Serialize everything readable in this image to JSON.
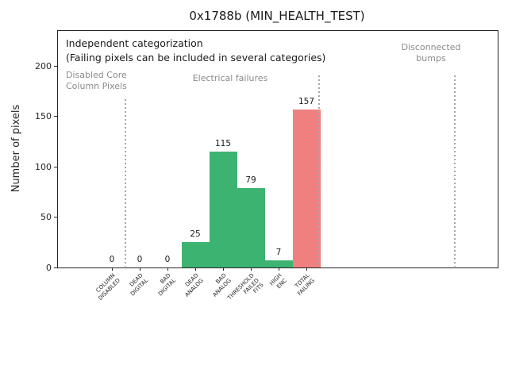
{
  "window": {
    "title": "0x1788b (MIN_HEALTH_TEST)"
  },
  "chart_data": {
    "type": "bar",
    "title": "0x1788b (MIN_HEALTH_TEST)",
    "xlabel": "",
    "ylabel": "Number of pixels",
    "categories": [
      "COLUMN\nDISABLED",
      "DEAD\nDIGITAL",
      "BAD\nDIGITAL",
      "DEAD\nANALOG",
      "BAD\nANALOG",
      "THRESHOLD\nFAILED\nFITS",
      "HIGH\nENC",
      "TOTAL\nFAILING"
    ],
    "values": [
      0,
      0,
      0,
      25,
      115,
      79,
      7,
      157
    ],
    "bar_value_labels": [
      "0",
      "0",
      "0",
      "25",
      "115",
      "79",
      "7",
      "157"
    ],
    "bar_colors": [
      "#3cb371",
      "#3cb371",
      "#3cb371",
      "#3cb371",
      "#3cb371",
      "#3cb371",
      "#3cb371",
      "#f08080"
    ],
    "yticks": [
      0,
      50,
      100,
      150,
      200
    ],
    "ylim": [
      0,
      235
    ],
    "grid": false,
    "legend": null,
    "annotations": [
      {
        "text": "Independent categorization",
        "color": "#1a1a1a"
      },
      {
        "text": "(Failing pixels can be included in several categories)",
        "color": "#1a1a1a"
      },
      {
        "text": "Disabled Core\nColumn Pixels",
        "color": "#8a8a8a"
      },
      {
        "text": "Electrical failures",
        "color": "#8a8a8a"
      },
      {
        "text": "Disconnected\nbumps",
        "color": "#8a8a8a"
      }
    ],
    "section_separators": [
      "after COLUMN DISABLED",
      "after TOTAL FAILING",
      "before right edge (disconnected bumps)"
    ]
  },
  "colors": {
    "bar_green": "#3cb371",
    "bar_red": "#f08080",
    "gray_text": "#8a8a8a",
    "separator_gray": "#a6a6a6",
    "text": "#1a1a1a",
    "background": "#ffffff"
  }
}
